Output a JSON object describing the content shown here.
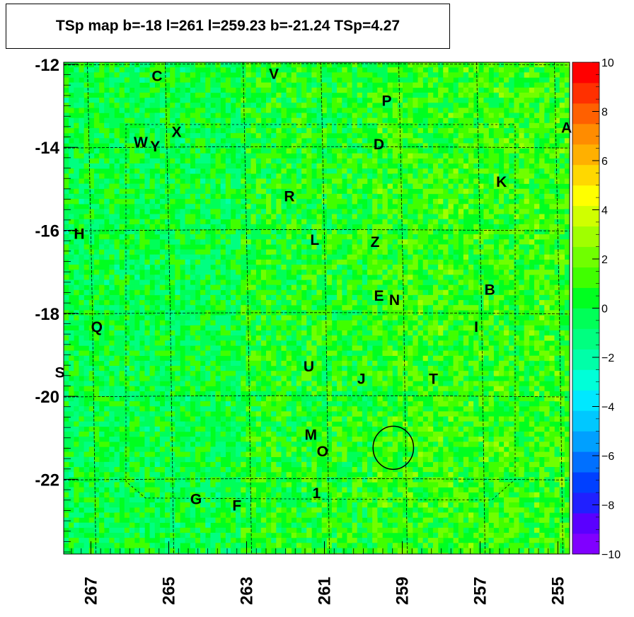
{
  "chart_data": {
    "type": "heatmap",
    "title": "TSp map b=-18 l=261 l=259.23 b=-21.24 TSp=4.27",
    "xlim": [
      267.7,
      254.7
    ],
    "ylim": [
      -23.8,
      -11.95
    ],
    "x_ticks": [
      "267",
      "265",
      "263",
      "261",
      "259",
      "257",
      "255"
    ],
    "x_tick_values": [
      267,
      265,
      263,
      261,
      259,
      257,
      255
    ],
    "y_ticks": [
      "-12",
      "-14",
      "-16",
      "-18",
      "-20",
      "-22"
    ],
    "y_tick_values": [
      -12,
      -14,
      -16,
      -18,
      -20,
      -22
    ],
    "z_range": [
      -10,
      10
    ],
    "z_ticks": [
      "10",
      "8",
      "6",
      "4",
      "2",
      "0",
      "−2",
      "−4",
      "−6",
      "−8",
      "−10"
    ],
    "z_tick_values": [
      10,
      8,
      6,
      4,
      2,
      0,
      -2,
      -4,
      -6,
      -8,
      -10
    ],
    "palette": [
      "#8000ff",
      "#5a00ff",
      "#2020ff",
      "#0040ff",
      "#0070ff",
      "#00a0ff",
      "#00c8ff",
      "#00e8ff",
      "#00ffd8",
      "#00ffa8",
      "#00ff80",
      "#00ff58",
      "#00ff20",
      "#40ff00",
      "#70ff00",
      "#a0ff00",
      "#d0ff00",
      "#ffff00",
      "#ffd800",
      "#ffb000",
      "#ff8c00",
      "#ff6000",
      "#ff3000",
      "#ff0000"
    ],
    "typical_value": 0.5,
    "circle": {
      "l": 259.23,
      "b": -21.24,
      "radius": 0.52
    },
    "sources": [
      {
        "label": "C",
        "l": 265.3,
        "b": -12.4
      },
      {
        "label": "V",
        "l": 262.3,
        "b": -12.35
      },
      {
        "label": "P",
        "l": 259.4,
        "b": -13.0
      },
      {
        "label": "X",
        "l": 264.8,
        "b": -13.75
      },
      {
        "label": "W",
        "l": 265.72,
        "b": -14.0
      },
      {
        "label": "Y",
        "l": 265.35,
        "b": -14.1
      },
      {
        "label": "A",
        "l": 254.78,
        "b": -13.65
      },
      {
        "label": "D",
        "l": 259.6,
        "b": -14.05
      },
      {
        "label": "K",
        "l": 256.45,
        "b": -14.95
      },
      {
        "label": "R",
        "l": 261.9,
        "b": -15.3
      },
      {
        "label": "L",
        "l": 261.25,
        "b": -16.35
      },
      {
        "label": "Z",
        "l": 259.7,
        "b": -16.4
      },
      {
        "label": "H",
        "l": 267.3,
        "b": -16.2
      },
      {
        "label": "E",
        "l": 259.6,
        "b": -17.7
      },
      {
        "label": "N",
        "l": 259.2,
        "b": -17.8
      },
      {
        "label": "B",
        "l": 256.75,
        "b": -17.55
      },
      {
        "label": "Q",
        "l": 266.85,
        "b": -18.45
      },
      {
        "label": "I",
        "l": 257.1,
        "b": -18.45
      },
      {
        "label": "S",
        "l": 267.8,
        "b": -19.55
      },
      {
        "label": "U",
        "l": 261.4,
        "b": -19.4
      },
      {
        "label": "J",
        "l": 260.05,
        "b": -19.7
      },
      {
        "label": "T",
        "l": 258.2,
        "b": -19.7
      },
      {
        "label": "M",
        "l": 261.35,
        "b": -21.05
      },
      {
        "label": "O",
        "l": 261.05,
        "b": -21.45
      },
      {
        "label": "1",
        "l": 261.2,
        "b": -22.45
      },
      {
        "label": "G",
        "l": 264.3,
        "b": -22.6
      },
      {
        "label": "F",
        "l": 263.25,
        "b": -22.75
      }
    ]
  }
}
